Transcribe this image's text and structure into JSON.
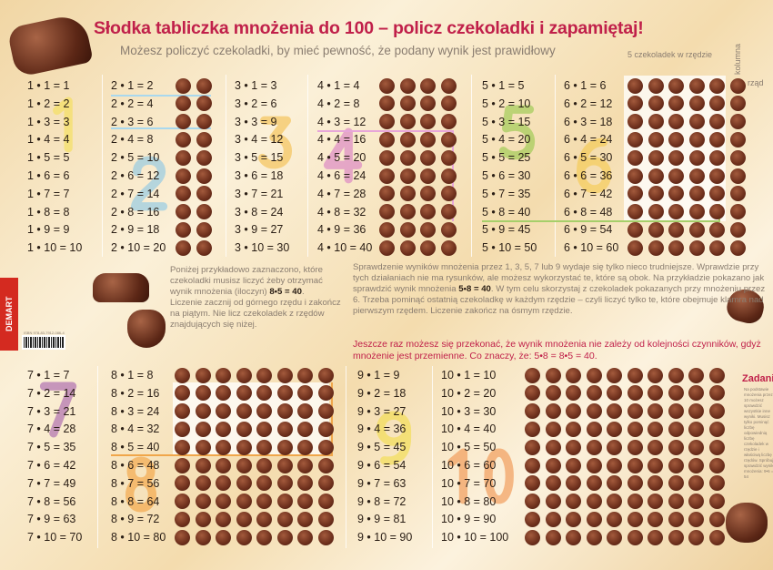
{
  "header": {
    "title": "Słodka tabliczka mnożenia do 100 – policz czekoladki i zapamiętaj!",
    "subtitle": "Możesz policzyć czekoladki, by mieć pewność, że podany wynik jest prawidłowy",
    "label_row_count": "5 czekoladek w rzędzie",
    "label_column": "kolumna",
    "label_row": "rząd"
  },
  "tables": [
    {
      "id": "t1",
      "big_digit": "1",
      "big_color": "#f5e04a",
      "chocolates": 0,
      "equations": [
        "1 • 1 = 1",
        "1 • 2 = 2",
        "1 • 3 = 3",
        "1 • 4 = 4",
        "1 • 5 = 5",
        "1 • 6 = 6",
        "1 • 7 = 7",
        "1 • 8 = 8",
        "1 • 9 = 9",
        "1 • 10 = 10"
      ]
    },
    {
      "id": "t2",
      "big_digit": "2",
      "big_color": "#7ec3e8",
      "chocolates": 2,
      "equations": [
        "2 • 1 = 2",
        "2 • 2 = 4",
        "2 • 3 = 6",
        "2 • 4 = 8",
        "2 • 5 = 10",
        "2 • 6 = 12",
        "2 • 7 = 14",
        "2 • 8 = 16",
        "2 • 9 = 18",
        "2 • 10 = 20"
      ]
    },
    {
      "id": "t3",
      "big_digit": "3",
      "big_color": "#f3b93c",
      "chocolates": 0,
      "equations": [
        "3 • 1 = 3",
        "3 • 2 = 6",
        "3 • 3 = 9",
        "3 • 4 = 12",
        "3 • 5 = 15",
        "3 • 6 = 18",
        "3 • 7 = 21",
        "3 • 8 = 24",
        "3 • 9 = 27",
        "3 • 10 = 30"
      ]
    },
    {
      "id": "t4",
      "big_digit": "4",
      "big_color": "#d671c3",
      "chocolates": 4,
      "equations": [
        "4 • 1 = 4",
        "4 • 2 = 8",
        "4 • 3 = 12",
        "4 • 4 = 16",
        "4 • 5 = 20",
        "4 • 6 = 24",
        "4 • 7 = 28",
        "4 • 8 = 32",
        "4 • 9 = 36",
        "4 • 10 = 40"
      ]
    },
    {
      "id": "t5",
      "big_digit": "5",
      "big_color": "#8cc63e",
      "chocolates": 0,
      "equations": [
        "5 • 1 = 5",
        "5 • 2 = 10",
        "5 • 3 = 15",
        "5 • 4 = 20",
        "5 • 5 = 25",
        "5 • 6 = 30",
        "5 • 7 = 35",
        "5 • 8 = 40",
        "5 • 9 = 45",
        "5 • 10 = 50"
      ]
    },
    {
      "id": "t6",
      "big_digit": "6",
      "big_color": "#f5c842",
      "chocolates": 6,
      "equations": [
        "6 • 1 = 6",
        "6 • 2 = 12",
        "6 • 3 = 18",
        "6 • 4 = 24",
        "6 • 5 = 30",
        "6 • 6 = 36",
        "6 • 7 = 42",
        "6 • 8 = 48",
        "6 • 9 = 54",
        "6 • 10 = 60"
      ]
    },
    {
      "id": "t7",
      "big_digit": "7",
      "big_color": "#9c4fa8",
      "chocolates": 0,
      "equations": [
        "7 • 1 = 7",
        "7 • 2 = 14",
        "7 • 3 = 21",
        "7 • 4 = 28",
        "7 • 5 = 35",
        "7 • 6 = 42",
        "7 • 7 = 49",
        "7 • 8 = 56",
        "7 • 9 = 63",
        "7 • 10 = 70"
      ]
    },
    {
      "id": "t8",
      "big_digit": "8",
      "big_color": "#f39a30",
      "chocolates": 8,
      "equations": [
        "8 • 1 = 8",
        "8 • 2 = 16",
        "8 • 3 = 24",
        "8 • 4 = 32",
        "8 • 5 = 40",
        "8 • 6 = 48",
        "8 • 7 = 56",
        "8 • 8 = 64",
        "8 • 9 = 72",
        "8 • 10 = 80"
      ]
    },
    {
      "id": "t9",
      "big_digit": "9",
      "big_color": "#f2dc3c",
      "chocolates": 0,
      "equations": [
        "9 • 1 = 9",
        "9 • 2 = 18",
        "9 • 3 = 27",
        "9 • 4 = 36",
        "9 • 5 = 45",
        "9 • 6 = 54",
        "9 • 7 = 63",
        "9 • 8 = 72",
        "9 • 9 = 81",
        "9 • 10 = 90"
      ]
    },
    {
      "id": "t10",
      "big_digit": "10",
      "big_color": "#f0883c",
      "chocolates": 10,
      "equations": [
        "10 • 1 = 10",
        "10 • 2 = 20",
        "10 • 3 = 30",
        "10 • 4 = 40",
        "10 • 5 = 50",
        "10 • 6 = 60",
        "10 • 7 = 70",
        "10 • 8 = 80",
        "10 • 9 = 90",
        "10 • 10 = 100"
      ]
    }
  ],
  "left_note": {
    "text": "Poniżej przykładowo zaznaczono, które czekoladki musisz liczyć żeby otrzymać wynik mnożenia (iloczyn)",
    "example": "8•5 = 40",
    "text2": "Liczenie zacznij od górnego rzędu i zakończ na piątym. Nie licz czekoladek z rzędów znajdujących się niżej."
  },
  "right_note": {
    "text": "Sprawdzenie wyników mnożenia przez 1, 3, 5, 7 lub 9 wydaje się tylko nieco trudniejsze. Wprawdzie przy tych działaniach nie ma rysunków, ale możesz wykorzystać te, które są obok. Na przykładzie pokazano jak sprawdzić wynik mnożenia",
    "example": "5•8 = 40",
    "text2": "W tym celu skorzystaj z czekoladek pokazanych przy mnożeniu przez 6. Trzeba pominąć ostatnią czekoladkę w każdym rzędzie – czyli liczyć tylko te, które obejmuje klamra nad pierwszym rzędem. Liczenie zakończ na ósmym rzędzie.",
    "highlight": "Jeszcze raz możesz się przekonać, że wynik mnożenia nie zależy od kolejności czynników, gdyż mnożenie jest przemienne. Co znaczy, że: 5•8 = 8•5 = 40."
  },
  "task": {
    "title": "Zadanie",
    "text": "Na podstawie mnożenia przez 10 możesz sprawdzić wszystkie inne wyniki. Musisz tylko pominąć liczbę odpowiednią liczbę czekoladek w rzędzie i właściwą liczbę rzędów. Spróbuj sprawdzić wynik mnożenia: 9•6 = 54"
  },
  "publisher": {
    "logo": "DEMART",
    "isbn": "ISBN 978-83-7912-086-4"
  },
  "colors": {
    "title": "#c0204a",
    "body_text": "#8a7d70",
    "chocolate": "#6d2f1c",
    "logo_red": "#d42a20"
  }
}
